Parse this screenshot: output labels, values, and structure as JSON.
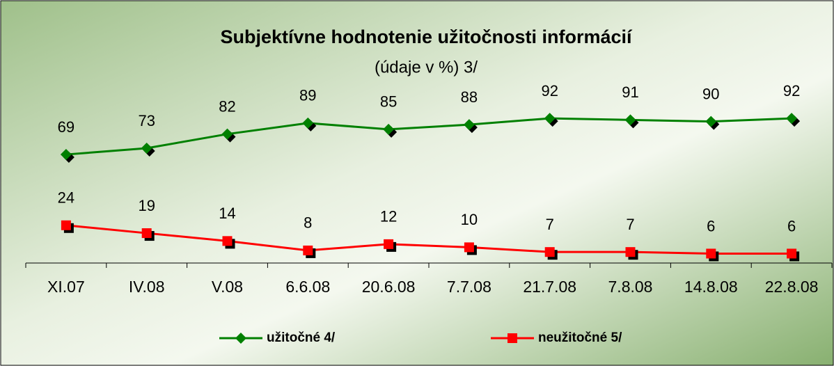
{
  "chart_data": {
    "type": "line",
    "title": "Subjektívne hodnotenie užitočnosti informácií",
    "subtitle": "(údaje v %) 3/",
    "categories": [
      "XI.07",
      "IV.08",
      "V.08",
      "6.6.08",
      "20.6.08",
      "7.7.08",
      "21.7.08",
      "7.8.08",
      "14.8.08",
      "22.8.08"
    ],
    "series": [
      {
        "name": "užitočné 4/",
        "color": "#008000",
        "marker": "diamond",
        "values": [
          69,
          73,
          82,
          89,
          85,
          88,
          92,
          91,
          90,
          92
        ]
      },
      {
        "name": "neužitočné 5/",
        "color": "#ff0000",
        "marker": "square",
        "values": [
          24,
          19,
          14,
          8,
          12,
          10,
          7,
          7,
          6,
          6
        ]
      }
    ],
    "ylim": [
      0,
      100
    ],
    "legend": "bottom"
  }
}
